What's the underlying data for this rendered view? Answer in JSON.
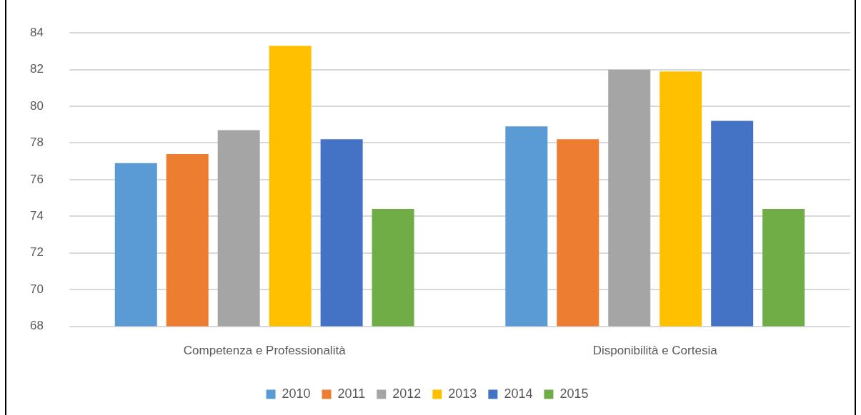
{
  "chart_data": {
    "type": "bar",
    "categories": [
      "Competenza e Professionalità",
      "Disponibilità e Cortesia"
    ],
    "series": [
      {
        "name": "2010",
        "color": "#5b9bd5",
        "values": [
          76.9,
          78.9
        ]
      },
      {
        "name": "2011",
        "color": "#ed7d31",
        "values": [
          77.4,
          78.2
        ]
      },
      {
        "name": "2012",
        "color": "#a5a5a5",
        "values": [
          78.7,
          82.0
        ]
      },
      {
        "name": "2013",
        "color": "#ffc000",
        "values": [
          83.3,
          81.9
        ]
      },
      {
        "name": "2014",
        "color": "#4472c4",
        "values": [
          78.2,
          79.2
        ]
      },
      {
        "name": "2015",
        "color": "#70ad47",
        "values": [
          74.4,
          74.4
        ]
      }
    ],
    "ylim": [
      68,
      84
    ],
    "yticks": [
      68,
      70,
      72,
      74,
      76,
      78,
      80,
      82,
      84
    ],
    "grid": "y",
    "legend": "bottom"
  }
}
